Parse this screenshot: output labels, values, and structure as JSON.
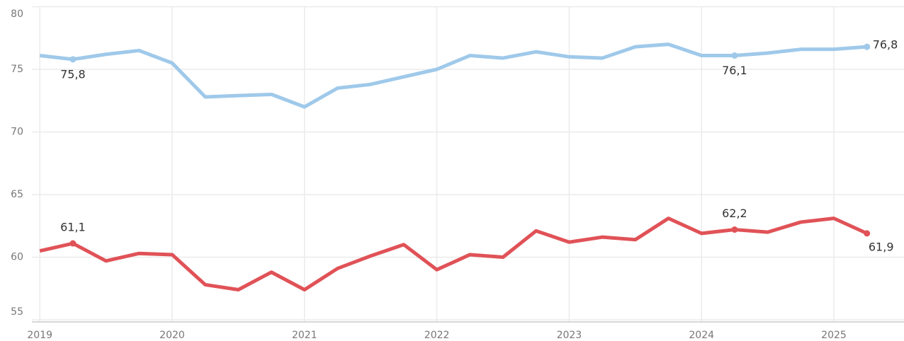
{
  "chart_data": {
    "type": "line",
    "x": [
      2019,
      2019.25,
      2019.5,
      2019.75,
      2020,
      2020.25,
      2020.5,
      2020.75,
      2021,
      2021.25,
      2021.5,
      2021.75,
      2022,
      2022.25,
      2022.5,
      2022.75,
      2023,
      2023.25,
      2023.5,
      2023.75,
      2024,
      2024.25,
      2024.5,
      2024.75,
      2025,
      2025.25
    ],
    "series": [
      {
        "color": "#9fc9ea",
        "values": [
          76.1,
          75.8,
          76.2,
          76.5,
          75.5,
          72.8,
          72.9,
          73.0,
          72.0,
          73.5,
          73.8,
          74.4,
          75.0,
          76.1,
          75.9,
          76.4,
          76.0,
          75.9,
          76.8,
          77.0,
          76.1,
          76.1,
          76.3,
          76.6,
          76.6,
          76.8
        ],
        "value_labels": [
          null,
          "75,8",
          null,
          null,
          null,
          null,
          null,
          null,
          null,
          null,
          null,
          null,
          null,
          null,
          null,
          null,
          null,
          null,
          null,
          null,
          null,
          "76,1",
          null,
          null,
          null,
          "76,8"
        ]
      },
      {
        "color": "#e05257",
        "values": [
          60.5,
          61.1,
          59.7,
          60.3,
          60.2,
          57.8,
          57.4,
          58.8,
          57.4,
          59.1,
          60.1,
          61.0,
          59.0,
          60.2,
          60.0,
          62.1,
          61.2,
          61.6,
          61.4,
          63.1,
          61.9,
          62.2,
          62.0,
          62.8,
          63.1,
          61.9
        ],
        "value_labels": [
          null,
          "61,1",
          null,
          null,
          null,
          null,
          null,
          null,
          null,
          null,
          null,
          null,
          null,
          null,
          null,
          null,
          null,
          null,
          null,
          null,
          null,
          "62,2",
          null,
          null,
          null,
          "61,9"
        ]
      }
    ],
    "xlim": [
      2018.94,
      2025.53
    ],
    "xticks": [
      2019,
      2020,
      2021,
      2022,
      2023,
      2024,
      2025
    ],
    "ylim": [
      55,
      80
    ],
    "yticks": [
      55,
      60,
      65,
      70,
      75,
      80
    ],
    "grid": true
  }
}
